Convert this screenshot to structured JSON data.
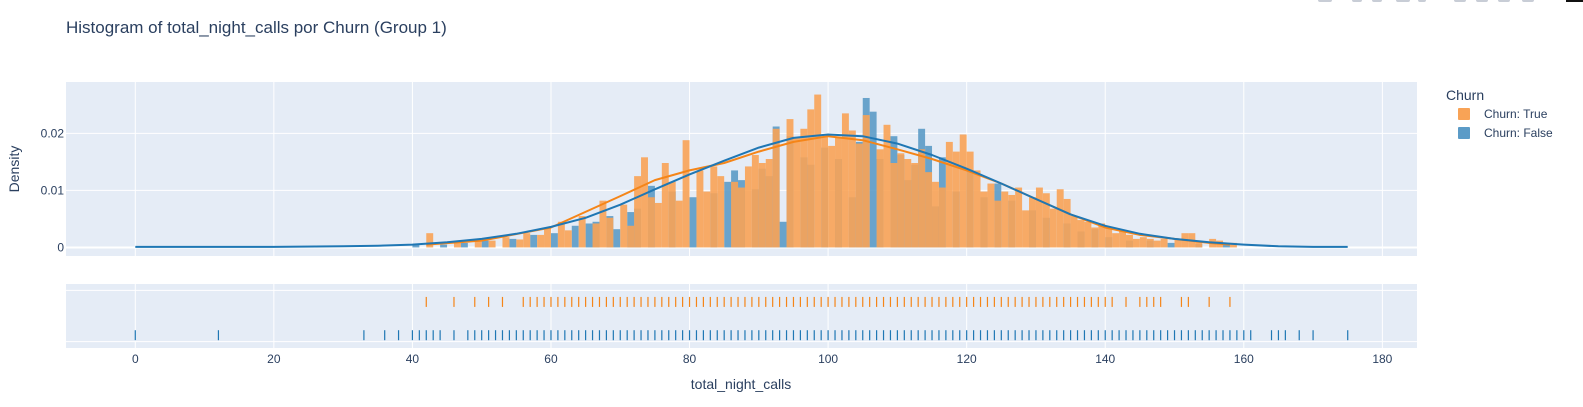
{
  "chart_data": {
    "type": "histogram",
    "title": "Histogram of total_night_calls por Churn (Group 1)",
    "xlabel": "total_night_calls",
    "ylabel": "Density",
    "xlim": [
      -10,
      185
    ],
    "ylim": [
      -0.0015,
      0.029
    ],
    "x_ticks": [
      0,
      20,
      40,
      60,
      80,
      100,
      120,
      140,
      160,
      180
    ],
    "y_ticks": [
      0,
      0.01,
      0.02
    ],
    "y_tick_labels": [
      "0",
      "0.01",
      "0.02"
    ],
    "bin_width": 1,
    "grid": true,
    "legend_position": "right",
    "legend_title": "Churn",
    "series": [
      {
        "name": "Churn: True",
        "color": "#f58518",
        "bar_color": "#f8a356",
        "bins": [
          [
            42,
            0.0025
          ],
          [
            46,
            0.001
          ],
          [
            49,
            0.0012
          ],
          [
            51,
            0.0012
          ],
          [
            53,
            0.0018
          ],
          [
            55,
            0.0014
          ],
          [
            56,
            0.0025
          ],
          [
            58,
            0.0022
          ],
          [
            59,
            0.0035
          ],
          [
            61,
            0.0045
          ],
          [
            62,
            0.003
          ],
          [
            64,
            0.0055
          ],
          [
            66,
            0.0042
          ],
          [
            67,
            0.0082
          ],
          [
            68,
            0.0052
          ],
          [
            70,
            0.0075
          ],
          [
            71,
            0.0038
          ],
          [
            72,
            0.0125
          ],
          [
            73,
            0.0158
          ],
          [
            74,
            0.0088
          ],
          [
            75,
            0.0078
          ],
          [
            76,
            0.0148
          ],
          [
            77,
            0.0115
          ],
          [
            78,
            0.0082
          ],
          [
            79,
            0.0188
          ],
          [
            81,
            0.0135
          ],
          [
            82,
            0.0098
          ],
          [
            83,
            0.0142
          ],
          [
            84,
            0.0125
          ],
          [
            86,
            0.0115
          ],
          [
            87,
            0.0105
          ],
          [
            88,
            0.0142
          ],
          [
            89,
            0.0162
          ],
          [
            90,
            0.0148
          ],
          [
            91,
            0.0155
          ],
          [
            92,
            0.0208
          ],
          [
            94,
            0.0225
          ],
          [
            95,
            0.0192
          ],
          [
            96,
            0.0208
          ],
          [
            97,
            0.0242
          ],
          [
            98,
            0.0268
          ],
          [
            99,
            0.0195
          ],
          [
            100,
            0.0178
          ],
          [
            101,
            0.0192
          ],
          [
            102,
            0.0235
          ],
          [
            103,
            0.0205
          ],
          [
            104,
            0.0182
          ],
          [
            105,
            0.0232
          ],
          [
            107,
            0.0172
          ],
          [
            108,
            0.0215
          ],
          [
            109,
            0.0148
          ],
          [
            110,
            0.0165
          ],
          [
            111,
            0.0155
          ],
          [
            112,
            0.0148
          ],
          [
            113,
            0.0172
          ],
          [
            114,
            0.0132
          ],
          [
            115,
            0.0115
          ],
          [
            116,
            0.0105
          ],
          [
            117,
            0.0185
          ],
          [
            118,
            0.0168
          ],
          [
            119,
            0.0198
          ],
          [
            120,
            0.0168
          ],
          [
            121,
            0.0135
          ],
          [
            122,
            0.0098
          ],
          [
            123,
            0.0112
          ],
          [
            124,
            0.0082
          ],
          [
            125,
            0.0098
          ],
          [
            126,
            0.0092
          ],
          [
            127,
            0.0105
          ],
          [
            128,
            0.0065
          ],
          [
            129,
            0.0088
          ],
          [
            130,
            0.0105
          ],
          [
            131,
            0.0095
          ],
          [
            132,
            0.0068
          ],
          [
            133,
            0.0102
          ],
          [
            134,
            0.0085
          ],
          [
            135,
            0.0055
          ],
          [
            136,
            0.0048
          ],
          [
            137,
            0.0045
          ],
          [
            138,
            0.0035
          ],
          [
            139,
            0.0042
          ],
          [
            140,
            0.0035
          ],
          [
            141,
            0.0025
          ],
          [
            142,
            0.0028
          ],
          [
            143,
            0.0022
          ],
          [
            144,
            0.0015
          ],
          [
            145,
            0.0018
          ],
          [
            146,
            0.0015
          ],
          [
            147,
            0.0012
          ],
          [
            148,
            0.0015
          ],
          [
            150,
            0.0015
          ],
          [
            151,
            0.0025
          ],
          [
            152,
            0.0025
          ],
          [
            153,
            0.0012
          ],
          [
            155,
            0.0015
          ],
          [
            156,
            0.0012
          ],
          [
            158,
            0.0008
          ]
        ],
        "kde": [
          [
            42,
            0.0005
          ],
          [
            50,
            0.0012
          ],
          [
            60,
            0.0035
          ],
          [
            70,
            0.009
          ],
          [
            75,
            0.0118
          ],
          [
            80,
            0.0135
          ],
          [
            85,
            0.0148
          ],
          [
            90,
            0.0168
          ],
          [
            95,
            0.0185
          ],
          [
            100,
            0.0195
          ],
          [
            105,
            0.0188
          ],
          [
            110,
            0.0172
          ],
          [
            115,
            0.0155
          ],
          [
            120,
            0.0135
          ],
          [
            125,
            0.0112
          ],
          [
            130,
            0.0085
          ],
          [
            135,
            0.0058
          ],
          [
            140,
            0.0035
          ],
          [
            145,
            0.0022
          ],
          [
            150,
            0.0015
          ],
          [
            155,
            0.0008
          ],
          [
            158,
            0.0005
          ]
        ],
        "rug_y": 0.72,
        "rug": [
          42,
          46,
          49,
          51,
          53,
          56,
          57,
          58,
          59,
          60,
          61,
          62,
          63,
          64,
          65,
          66,
          67,
          68,
          69,
          70,
          71,
          72,
          73,
          74,
          75,
          76,
          77,
          78,
          79,
          80,
          81,
          82,
          83,
          84,
          85,
          86,
          87,
          88,
          89,
          90,
          91,
          92,
          93,
          94,
          95,
          96,
          97,
          98,
          99,
          100,
          101,
          102,
          103,
          104,
          105,
          106,
          107,
          108,
          109,
          110,
          111,
          112,
          113,
          114,
          115,
          116,
          117,
          118,
          119,
          120,
          121,
          122,
          123,
          124,
          125,
          126,
          127,
          128,
          129,
          130,
          131,
          132,
          133,
          134,
          135,
          136,
          137,
          138,
          139,
          140,
          141,
          143,
          145,
          146,
          147,
          148,
          151,
          152,
          155,
          158
        ]
      },
      {
        "name": "Churn: False",
        "color": "#1f77b4",
        "bar_color": "#5b9bc7",
        "bins": [
          [
            40,
            0.0005
          ],
          [
            44,
            0.0005
          ],
          [
            47,
            0.0008
          ],
          [
            50,
            0.0012
          ],
          [
            54,
            0.0015
          ],
          [
            57,
            0.0022
          ],
          [
            60,
            0.0025
          ],
          [
            63,
            0.0038
          ],
          [
            65,
            0.0042
          ],
          [
            66,
            0.0045
          ],
          [
            68,
            0.0055
          ],
          [
            69,
            0.0032
          ],
          [
            71,
            0.0062
          ],
          [
            72,
            0.0068
          ],
          [
            74,
            0.0108
          ],
          [
            77,
            0.0098
          ],
          [
            80,
            0.0088
          ],
          [
            83,
            0.0095
          ],
          [
            85,
            0.0115
          ],
          [
            86,
            0.0135
          ],
          [
            87,
            0.0118
          ],
          [
            89,
            0.0102
          ],
          [
            90,
            0.0138
          ],
          [
            91,
            0.0125
          ],
          [
            92,
            0.0212
          ],
          [
            93,
            0.0045
          ],
          [
            94,
            0.0195
          ],
          [
            96,
            0.0158
          ],
          [
            97,
            0.0145
          ],
          [
            99,
            0.0175
          ],
          [
            101,
            0.0155
          ],
          [
            103,
            0.0088
          ],
          [
            104,
            0.0185
          ],
          [
            105,
            0.0262
          ],
          [
            106,
            0.0238
          ],
          [
            107,
            0.0155
          ],
          [
            109,
            0.0195
          ],
          [
            110,
            0.0162
          ],
          [
            111,
            0.0118
          ],
          [
            112,
            0.0145
          ],
          [
            113,
            0.0208
          ],
          [
            114,
            0.0178
          ],
          [
            115,
            0.0072
          ],
          [
            116,
            0.0158
          ],
          [
            118,
            0.0098
          ],
          [
            120,
            0.0135
          ],
          [
            122,
            0.0088
          ],
          [
            124,
            0.0112
          ],
          [
            126,
            0.0082
          ],
          [
            129,
            0.0065
          ],
          [
            131,
            0.0052
          ],
          [
            134,
            0.0042
          ],
          [
            136,
            0.0028
          ],
          [
            138,
            0.0032
          ],
          [
            140,
            0.0018
          ],
          [
            143,
            0.0012
          ],
          [
            146,
            0.0012
          ],
          [
            149,
            0.0008
          ],
          [
            153,
            0.0006
          ],
          [
            157,
            0.0005
          ]
        ],
        "kde": [
          [
            0,
            0.0001
          ],
          [
            10,
            0.0001
          ],
          [
            20,
            0.0001
          ],
          [
            30,
            0.0002
          ],
          [
            35,
            0.0003
          ],
          [
            40,
            0.0005
          ],
          [
            45,
            0.0009
          ],
          [
            50,
            0.0015
          ],
          [
            55,
            0.0024
          ],
          [
            60,
            0.0036
          ],
          [
            65,
            0.0052
          ],
          [
            70,
            0.0075
          ],
          [
            75,
            0.0102
          ],
          [
            80,
            0.0128
          ],
          [
            85,
            0.0152
          ],
          [
            90,
            0.0175
          ],
          [
            95,
            0.0192
          ],
          [
            100,
            0.0198
          ],
          [
            105,
            0.0195
          ],
          [
            110,
            0.0182
          ],
          [
            115,
            0.0162
          ],
          [
            120,
            0.0138
          ],
          [
            125,
            0.0112
          ],
          [
            130,
            0.0085
          ],
          [
            135,
            0.0058
          ],
          [
            140,
            0.0038
          ],
          [
            145,
            0.0024
          ],
          [
            150,
            0.0015
          ],
          [
            155,
            0.0009
          ],
          [
            160,
            0.0005
          ],
          [
            165,
            0.0002
          ],
          [
            170,
            0.0001
          ],
          [
            175,
            0.0001
          ]
        ],
        "rug_y": 0.2,
        "rug": [
          0,
          12,
          33,
          36,
          38,
          40,
          41,
          42,
          43,
          44,
          46,
          48,
          49,
          50,
          51,
          52,
          53,
          54,
          55,
          56,
          57,
          58,
          59,
          60,
          61,
          62,
          63,
          64,
          65,
          66,
          67,
          68,
          69,
          70,
          71,
          72,
          73,
          74,
          75,
          76,
          77,
          78,
          79,
          80,
          81,
          82,
          83,
          84,
          85,
          86,
          87,
          88,
          89,
          90,
          91,
          92,
          93,
          94,
          95,
          96,
          97,
          98,
          99,
          100,
          101,
          102,
          103,
          104,
          105,
          106,
          107,
          108,
          109,
          110,
          111,
          112,
          113,
          114,
          115,
          116,
          117,
          118,
          119,
          120,
          121,
          122,
          123,
          124,
          125,
          126,
          127,
          128,
          129,
          130,
          131,
          132,
          133,
          134,
          135,
          136,
          137,
          138,
          139,
          140,
          141,
          142,
          143,
          144,
          145,
          146,
          147,
          148,
          149,
          150,
          151,
          152,
          153,
          154,
          155,
          156,
          157,
          158,
          159,
          160,
          161,
          164,
          165,
          166,
          168,
          170,
          175
        ]
      }
    ]
  }
}
